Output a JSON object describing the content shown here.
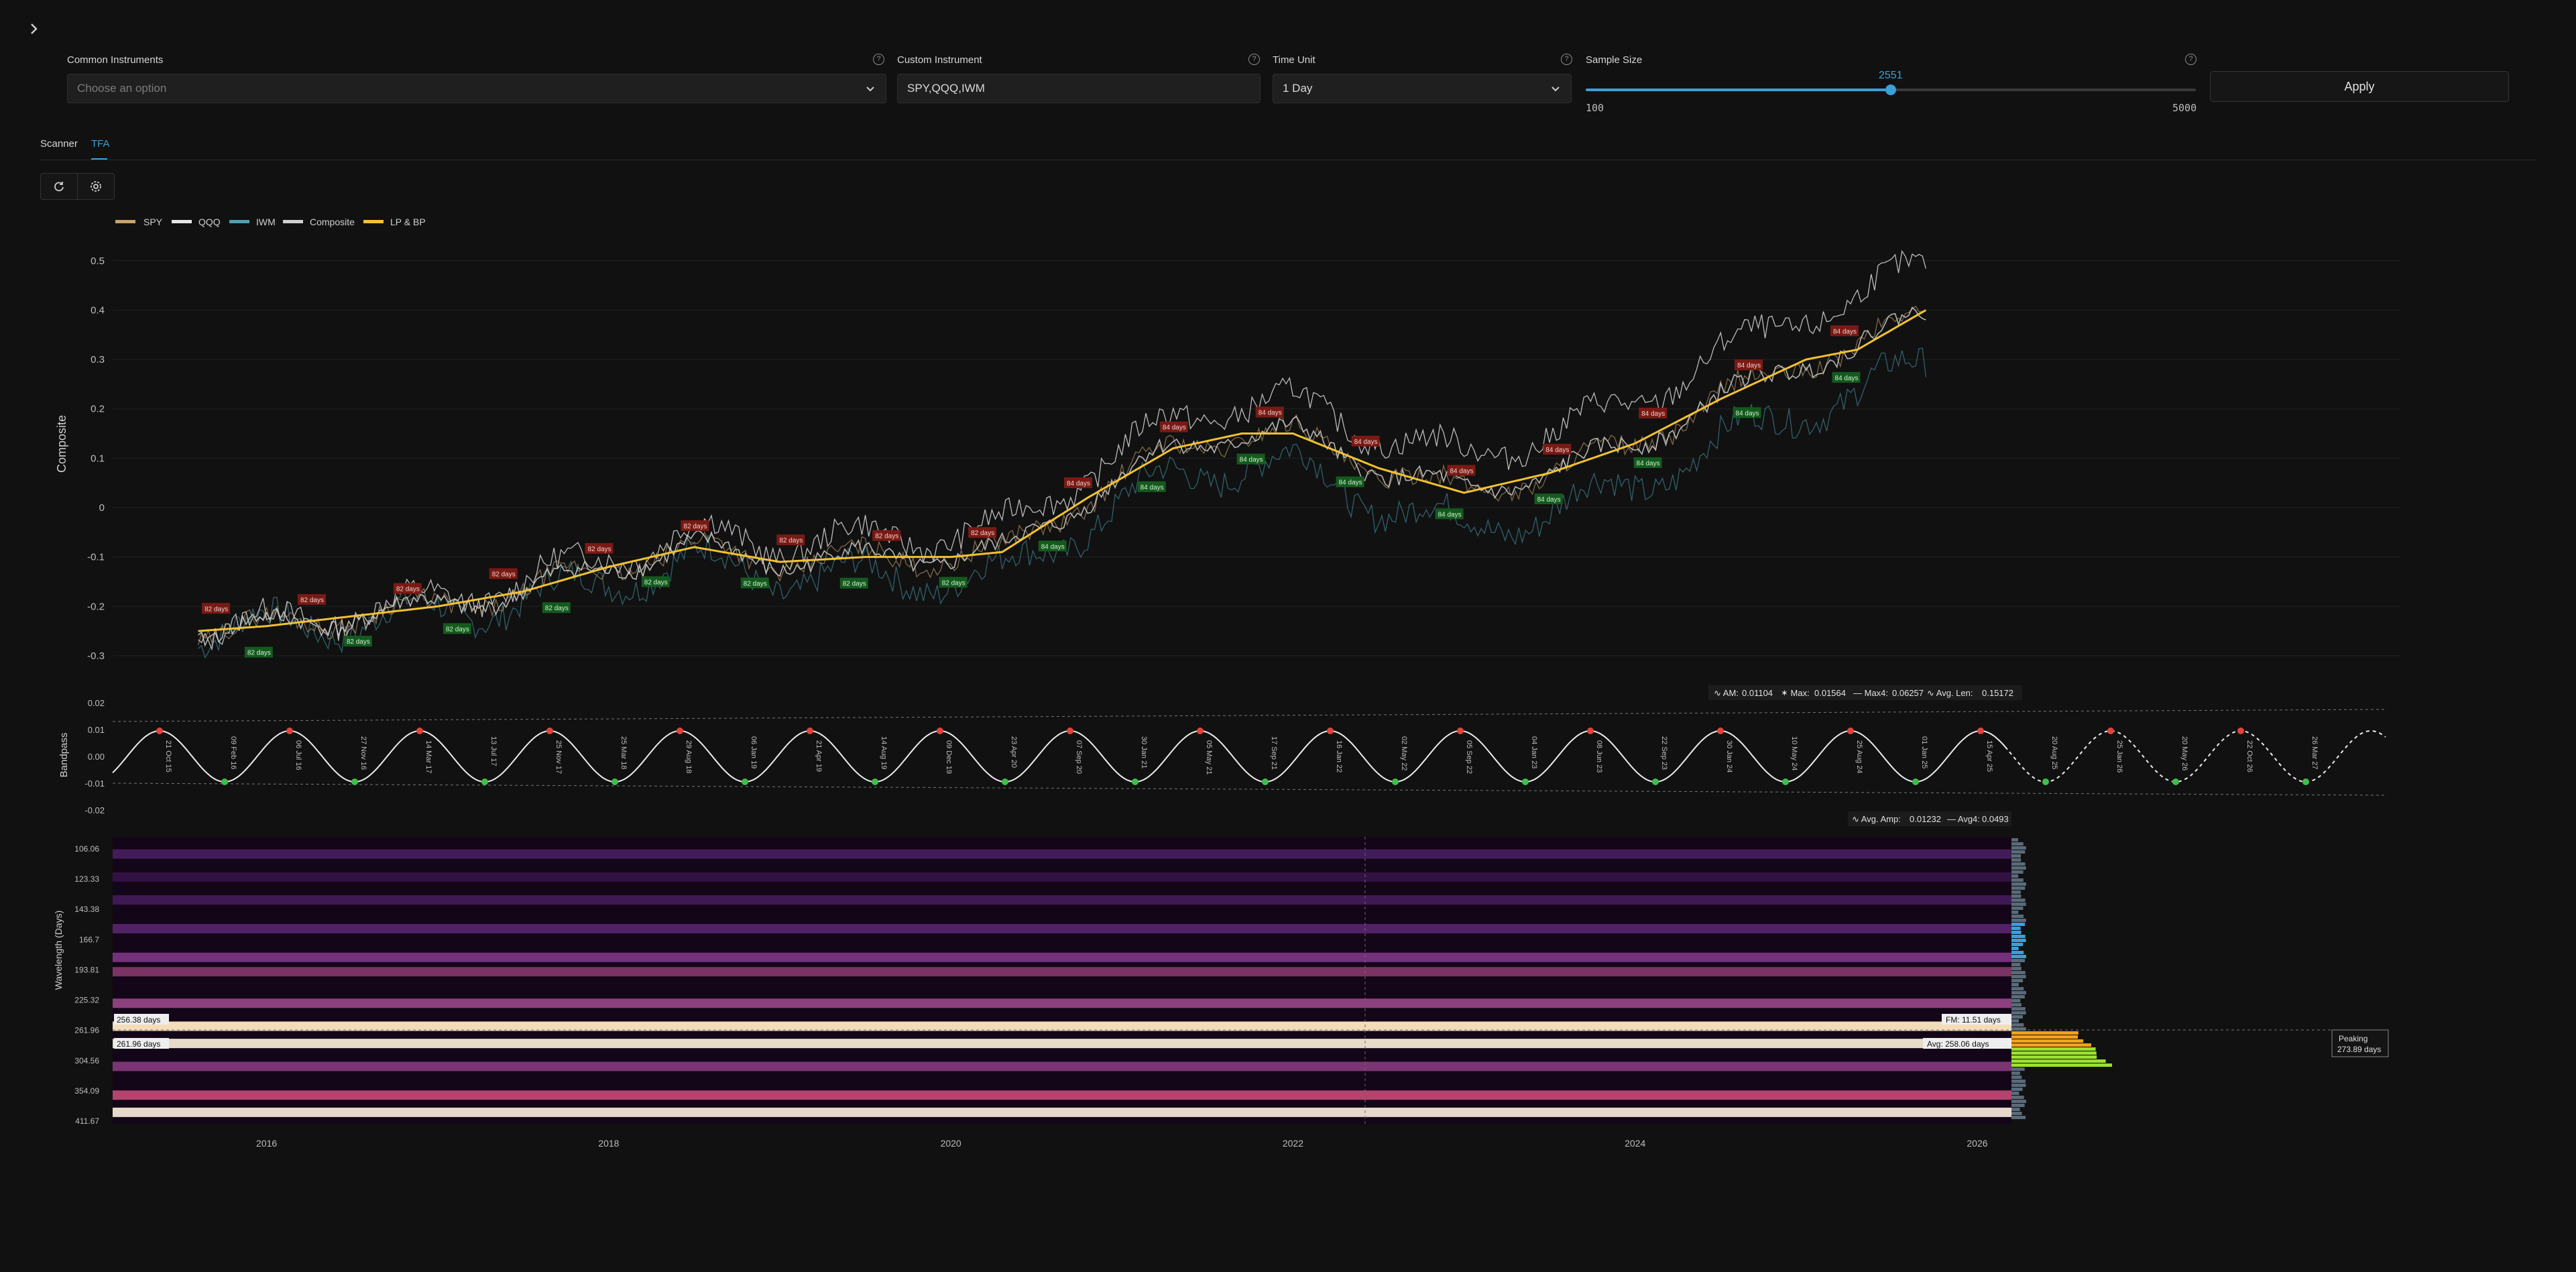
{
  "nav": {
    "expand_icon": "chevron-right-icon"
  },
  "controls": {
    "common": {
      "label": "Common Instruments",
      "placeholder": "Choose an option"
    },
    "custom": {
      "label": "Custom Instrument",
      "value": "SPY,QQQ,IWM"
    },
    "time_unit": {
      "label": "Time Unit",
      "value": "1 Day"
    },
    "sample": {
      "label": "Sample Size",
      "value": "2551",
      "min": "100",
      "max": "5000",
      "fraction": 0.5
    }
  },
  "apply_label": "Apply",
  "tabs": [
    {
      "label": "Scanner",
      "active": false
    },
    {
      "label": "TFA",
      "active": true
    }
  ],
  "toolbar": {
    "refresh_icon": "refresh-icon",
    "settings_icon": "gear-icon"
  },
  "colors": {
    "accent": "#3aa0d8",
    "spy": "#c9a46c",
    "qqq": "#e6e6e6",
    "iwm": "#4aa3b5",
    "composite": "#d0d0d0",
    "lpbp": "#f2c230",
    "peak": "#e0453a",
    "trough": "#3fbf4a"
  },
  "legend": [
    "SPY",
    "QQQ",
    "IWM",
    "Composite",
    "LP & BP"
  ],
  "chart_data": {
    "type": "line",
    "ylabel": "Composite",
    "ylim": [
      -0.33,
      0.55
    ],
    "yticks": [
      "0.5",
      "0.4",
      "0.3",
      "0.2",
      "0.1",
      "0",
      "-0.1",
      "-0.2",
      "-0.3"
    ],
    "x_years": [
      "2016",
      "2018",
      "2020",
      "2022",
      "2024",
      "2026"
    ],
    "lpbp": [
      [
        2015.6,
        -0.25
      ],
      [
        2016,
        -0.24
      ],
      [
        2016.5,
        -0.22
      ],
      [
        2017,
        -0.2
      ],
      [
        2017.5,
        -0.17
      ],
      [
        2018,
        -0.12
      ],
      [
        2018.5,
        -0.08
      ],
      [
        2019,
        -0.11
      ],
      [
        2019.5,
        -0.1
      ],
      [
        2020,
        -0.1
      ],
      [
        2020.3,
        -0.09
      ],
      [
        2020.8,
        0.02
      ],
      [
        2021.3,
        0.12
      ],
      [
        2021.7,
        0.15
      ],
      [
        2022,
        0.15
      ],
      [
        2022.5,
        0.08
      ],
      [
        2023,
        0.03
      ],
      [
        2023.5,
        0.07
      ],
      [
        2024,
        0.13
      ],
      [
        2024.5,
        0.22
      ],
      [
        2025,
        0.3
      ],
      [
        2025.3,
        0.32
      ],
      [
        2025.7,
        0.4
      ]
    ],
    "peak_tags": [
      "82 days",
      "82 days",
      "82 days",
      "82 days",
      "82 days",
      "82 days",
      "82 days",
      "82 days",
      "82 days",
      "84 days",
      "84 days",
      "84 days",
      "84 days",
      "84 days",
      "84 days",
      "84 days",
      "84 days",
      "84 days"
    ],
    "trough_tags": [
      "82 days",
      "82 days",
      "82 days",
      "82 days",
      "82 days",
      "82 days",
      "82 days",
      "82 days",
      "84 days",
      "84 days",
      "84 days",
      "84 days",
      "84 days",
      "84 days",
      "84 days",
      "84 days",
      "84 days"
    ],
    "bandpass": {
      "ylabel": "Bandpass",
      "yticks": [
        "0.02",
        "0.01",
        "0.00",
        "-0.01",
        "-0.02"
      ],
      "stats_top": {
        "am": "0.01104",
        "max": "0.01564",
        "max4": "0.06257",
        "avg_len": "0.15172"
      },
      "stats_bottom": {
        "avg_amp": "0.01232",
        "avg4": "0.0493"
      },
      "date_labels": [
        "21 Oct 15",
        "09 Feb 16",
        "06 Jul 16",
        "27 Nov 16",
        "14 Mar 17",
        "13 Jul 17",
        "25 Nov 17",
        "25 Mar 18",
        "29 Aug 18",
        "06 Jan 19",
        "21 Apr 19",
        "14 Aug 19",
        "09 Dec 19",
        "23 Apr 20",
        "07 Sep 20",
        "30 Jan 21",
        "05 May 21",
        "17 Sep 21",
        "16 Jan 22",
        "02 May 22",
        "05 Sep 22",
        "04 Jan 23",
        "08 Jun 23",
        "22 Sep 23",
        "30 Jan 24",
        "10 May 24",
        "25 Aug 24",
        "01 Jan 25",
        "15 Apr 25",
        "20 Aug 25",
        "25 Jan 26",
        "20 May 26",
        "22 Oct 26",
        "26 Mar 27"
      ]
    },
    "spectrum": {
      "ylabel": "Wavelength (Days)",
      "yticks": [
        "106.06",
        "123.33",
        "143.38",
        "166.7",
        "193.81",
        "225.32",
        "261.96",
        "304.56",
        "354.09",
        "411.67"
      ],
      "left_labels": [
        "256.38 days",
        "261.96 days"
      ],
      "fm": "FM: 11.51 days",
      "avg": "Avg: 258.06 days",
      "peaking_title": "Peaking",
      "peaking_value": "273.89 days"
    }
  }
}
